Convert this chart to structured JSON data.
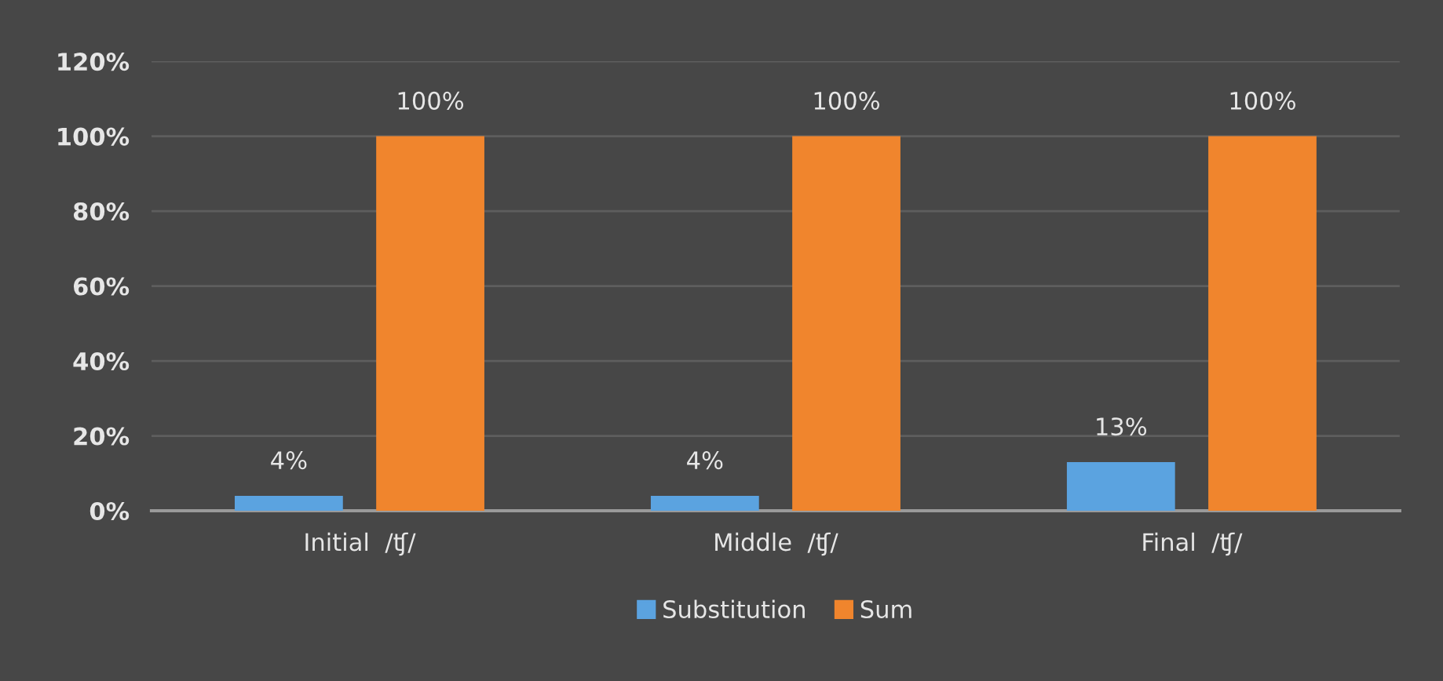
{
  "chart_data": {
    "type": "bar",
    "categories": [
      "Initial  /ʧ/",
      "Middle  /ʧ/",
      "Final  /ʧ/"
    ],
    "series": [
      {
        "name": "Substitution",
        "color": "#5ba3e0",
        "values": [
          4,
          4,
          13
        ],
        "value_labels": [
          "4%",
          "4%",
          "13%"
        ]
      },
      {
        "name": "Sum",
        "color": "#f0852d",
        "values": [
          100,
          100,
          100
        ],
        "value_labels": [
          "100%",
          "100%",
          "100%"
        ]
      }
    ],
    "ylim": [
      0,
      120
    ],
    "yticks": [
      {
        "value": 0,
        "label": "0%"
      },
      {
        "value": 20,
        "label": "20%"
      },
      {
        "value": 40,
        "label": "40%"
      },
      {
        "value": 60,
        "label": "60%"
      },
      {
        "value": 80,
        "label": "80%"
      },
      {
        "value": 100,
        "label": "100%"
      },
      {
        "value": 120,
        "label": "120%"
      }
    ],
    "grid": "y",
    "legend": "bottom"
  }
}
